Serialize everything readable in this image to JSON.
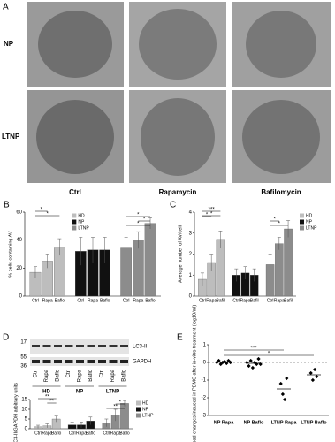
{
  "panel_a": {
    "letter": "A",
    "rows": [
      "NP",
      "LTNP"
    ],
    "columns": [
      "Ctrl",
      "Rapamycin",
      "Bafilomycin"
    ]
  },
  "panel_d_blot": {
    "letter": "D",
    "markers": [
      "17",
      "55",
      "36"
    ],
    "bands": [
      "LC3-II",
      "GAPDH"
    ],
    "lanes": [
      "Ctrl",
      "Rapa",
      "Baflo",
      "Ctrl",
      "Rapa",
      "Baflo",
      "Ctrl",
      "Rapa",
      "Baflo"
    ],
    "groups": [
      "HD",
      "NP",
      "LTNP"
    ]
  },
  "chart_data": [
    {
      "type": "bar",
      "letter": "B",
      "ylabel": "% cells containing AV",
      "categories": [
        "Ctrl",
        "Rapa",
        "Baflo"
      ],
      "ylim": [
        0,
        60
      ],
      "yticks": [
        0,
        20,
        40,
        60
      ],
      "legend": "upper-left",
      "series": [
        {
          "name": "HD",
          "color": "#bdbdbd",
          "values": [
            17,
            25,
            35
          ],
          "errors": [
            4,
            5,
            6
          ]
        },
        {
          "name": "NP",
          "color": "#111111",
          "values": [
            32,
            33,
            33
          ],
          "errors": [
            10,
            9,
            9
          ]
        },
        {
          "name": "LTNP",
          "color": "#8c8c8c",
          "values": [
            35,
            40,
            52
          ],
          "errors": [
            7,
            6,
            4
          ]
        }
      ],
      "annotations": [
        "*",
        "*",
        "*",
        "*",
        "*"
      ]
    },
    {
      "type": "bar",
      "letter": "C",
      "ylabel": "Average number of AV/cell",
      "categories": [
        "Ctrl",
        "Rapa",
        "Bafil"
      ],
      "ylim": [
        0,
        4
      ],
      "yticks": [
        0,
        1,
        2,
        3,
        4
      ],
      "legend": "upper-right",
      "series": [
        {
          "name": "HD",
          "color": "#bdbdbd",
          "values": [
            0.8,
            1.6,
            2.7
          ],
          "errors": [
            0.3,
            0.4,
            0.4
          ]
        },
        {
          "name": "NP",
          "color": "#111111",
          "values": [
            1.0,
            1.1,
            1.0
          ],
          "errors": [
            0.3,
            0.3,
            0.3
          ]
        },
        {
          "name": "LTNP",
          "color": "#8c8c8c",
          "values": [
            1.5,
            2.5,
            3.2
          ],
          "errors": [
            0.5,
            0.3,
            0.4
          ]
        }
      ],
      "annotations": [
        "***",
        "*",
        "*",
        "*",
        "*"
      ]
    },
    {
      "type": "bar",
      "ylabel": "LC3-II/GAPDH arbitrary units",
      "categories": [
        "Ctrl",
        "Rapa",
        "Baflo"
      ],
      "ylim": [
        0,
        15
      ],
      "yticks": [
        0,
        5,
        10,
        15
      ],
      "legend": "upper-right",
      "series": [
        {
          "name": "HD",
          "color": "#bdbdbd",
          "values": [
            1,
            1.5,
            5
          ],
          "errors": [
            0.8,
            1,
            1.5
          ]
        },
        {
          "name": "NP",
          "color": "#111111",
          "values": [
            2,
            2,
            4
          ],
          "errors": [
            1.5,
            1.5,
            2
          ]
        },
        {
          "name": "LTNP",
          "color": "#8c8c8c",
          "values": [
            3,
            7,
            13
          ],
          "errors": [
            2,
            3,
            1.5
          ]
        }
      ],
      "annotations": [
        "**",
        "**",
        "*",
        "**"
      ]
    },
    {
      "type": "scatter",
      "letter": "E",
      "ylabel": "Viral load changes induced in PBMC after in-vitro treatment (log10/ml)",
      "categories": [
        "NP Rapa",
        "NP Baflo",
        "LTNP Rapa",
        "LTNP Baflo"
      ],
      "ylim": [
        -3,
        1
      ],
      "yticks": [
        -3,
        -2,
        -1,
        0,
        1
      ],
      "values": [
        [
          0,
          0.1,
          -0.1,
          0,
          0.05,
          -0.05,
          0.1,
          0
        ],
        [
          0,
          -0.2,
          0.1,
          -0.3,
          0,
          -0.1,
          0.2,
          -0.1
        ],
        [
          -1.2,
          -1.8,
          -2.1,
          -0.9
        ],
        [
          -0.6,
          -1.0,
          -0.4,
          -0.8
        ]
      ],
      "annotations": [
        "***",
        "*"
      ]
    }
  ]
}
